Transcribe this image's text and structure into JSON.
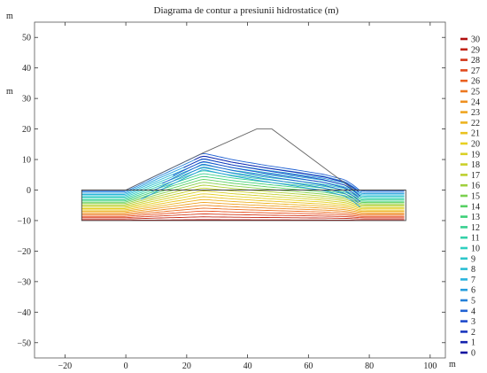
{
  "chart_data": {
    "type": "contour",
    "title": "Diagrama de contur a presiunii hidrostatice (m)",
    "xunit": "m",
    "yunit": "m",
    "xlim": [
      -30,
      105
    ],
    "ylim": [
      -55,
      55
    ],
    "xticks": [
      -20,
      0,
      20,
      40,
      60,
      80,
      100
    ],
    "yticks": [
      -50,
      -40,
      -30,
      -20,
      -10,
      0,
      10,
      20,
      30,
      40,
      50
    ],
    "grid": false,
    "domain_outline": {
      "foundation": [
        [
          -14.5,
          0
        ],
        [
          0,
          0
        ],
        [
          0,
          0
        ],
        [
          92,
          0
        ],
        [
          92,
          -10
        ],
        [
          -14.5,
          -10
        ]
      ],
      "dam": [
        [
          0,
          0
        ],
        [
          25,
          12
        ],
        [
          43,
          20
        ],
        [
          48,
          20
        ],
        [
          75,
          0
        ]
      ]
    },
    "phreatic_surface": [
      [
        26,
        12
      ],
      [
        35,
        10
      ],
      [
        45,
        8.3
      ],
      [
        55,
        6.8
      ],
      [
        65,
        5.2
      ],
      [
        72,
        3.4
      ],
      [
        75,
        1.5
      ],
      [
        77,
        -0.2
      ],
      [
        79,
        -0.3
      ],
      [
        92,
        -0.3
      ]
    ],
    "contour_levels": [
      0,
      1,
      2,
      3,
      4,
      5,
      6,
      7,
      8,
      9,
      10,
      11,
      12,
      13,
      14,
      15,
      16,
      17,
      18,
      19,
      20,
      21,
      22,
      23,
      24,
      25,
      26,
      27,
      28,
      29,
      30
    ],
    "colorbar": {
      "min": 0,
      "max": 30,
      "labels": [
        "30",
        "29",
        "28",
        "27",
        "26",
        "25",
        "24",
        "23",
        "22",
        "21",
        "20",
        "19",
        "18",
        "17",
        "16",
        "15",
        "14",
        "13",
        "12",
        "11",
        "10",
        "9",
        "8",
        "7",
        "6",
        "5",
        "4",
        "3",
        "2",
        "1",
        "0"
      ]
    },
    "colormap": [
      "#1010a0",
      "#1f4fd0",
      "#28b0e0",
      "#30d0c0",
      "#3ed070",
      "#b8d030",
      "#e8d020",
      "#f0a020",
      "#e85020",
      "#b01010"
    ]
  }
}
